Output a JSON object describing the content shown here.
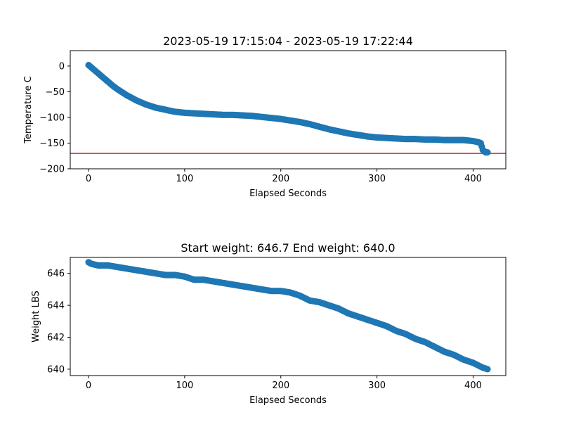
{
  "chart_data": [
    {
      "type": "scatter",
      "title": "2023-05-19 17:15:04 - 2023-05-19 17:22:44",
      "xlabel": "Elapsed Seconds",
      "ylabel": "Temperature C",
      "xlim": [
        -19,
        434
      ],
      "ylim": [
        -200,
        30
      ],
      "xticks": [
        0,
        100,
        200,
        300,
        400
      ],
      "yticks": [
        0,
        -50,
        -100,
        -150,
        -200
      ],
      "xtick_labels": [
        "0",
        "100",
        "200",
        "300",
        "400"
      ],
      "ytick_labels": [
        "0",
        "−50",
        "−100",
        "−150",
        "−200"
      ],
      "marker_color": "#1f77b4",
      "reference_line": {
        "y": -170,
        "color": "#d62728"
      },
      "series": [
        {
          "x": [
            0,
            5,
            10,
            15,
            20,
            25,
            30,
            35,
            40,
            45,
            50,
            55,
            60,
            65,
            70,
            75,
            80,
            85,
            90,
            95,
            100,
            110,
            120,
            130,
            140,
            150,
            160,
            170,
            180,
            190,
            200,
            210,
            220,
            230,
            240,
            250,
            260,
            270,
            280,
            290,
            300,
            310,
            320,
            330,
            340,
            350,
            360,
            370,
            380,
            390,
            400,
            405,
            408,
            410,
            413,
            415
          ],
          "y": [
            2,
            -6,
            -14,
            -22,
            -30,
            -38,
            -45,
            -51,
            -57,
            -62,
            -67,
            -71,
            -75,
            -78,
            -81,
            -83,
            -85,
            -87,
            -89,
            -90,
            -91,
            -92,
            -93,
            -94,
            -95,
            -95,
            -96,
            -97,
            -99,
            -101,
            -103,
            -106,
            -109,
            -113,
            -118,
            -123,
            -127,
            -131,
            -134,
            -137,
            -139,
            -140,
            -141,
            -142,
            -142,
            -143,
            -143,
            -144,
            -144,
            -144,
            -146,
            -148,
            -150,
            -163,
            -168,
            -168
          ]
        }
      ]
    },
    {
      "type": "scatter",
      "title": "Start weight: 646.7 End weight: 640.0",
      "xlabel": "Elapsed Seconds",
      "ylabel": "Weight LBS",
      "xlim": [
        -19,
        434
      ],
      "ylim": [
        639.6,
        647.0
      ],
      "xticks": [
        0,
        100,
        200,
        300,
        400
      ],
      "yticks": [
        640,
        642,
        644,
        646
      ],
      "xtick_labels": [
        "0",
        "100",
        "200",
        "300",
        "400"
      ],
      "ytick_labels": [
        "640",
        "642",
        "644",
        "646"
      ],
      "marker_color": "#1f77b4",
      "series": [
        {
          "x": [
            0,
            3,
            10,
            20,
            30,
            40,
            50,
            60,
            70,
            80,
            90,
            100,
            110,
            120,
            130,
            140,
            150,
            160,
            170,
            180,
            190,
            200,
            210,
            220,
            230,
            240,
            250,
            260,
            270,
            280,
            290,
            300,
            310,
            320,
            330,
            340,
            350,
            360,
            370,
            380,
            390,
            400,
            410,
            415
          ],
          "y": [
            646.7,
            646.6,
            646.5,
            646.5,
            646.4,
            646.3,
            646.2,
            646.1,
            646.0,
            645.9,
            645.9,
            645.8,
            645.6,
            645.6,
            645.5,
            645.4,
            645.3,
            645.2,
            645.1,
            645.0,
            644.9,
            644.9,
            644.8,
            644.6,
            644.3,
            644.2,
            644.0,
            643.8,
            643.5,
            643.3,
            643.1,
            642.9,
            642.7,
            642.4,
            642.2,
            641.9,
            641.7,
            641.4,
            641.1,
            640.9,
            640.6,
            640.4,
            640.1,
            640.0
          ]
        }
      ]
    }
  ]
}
